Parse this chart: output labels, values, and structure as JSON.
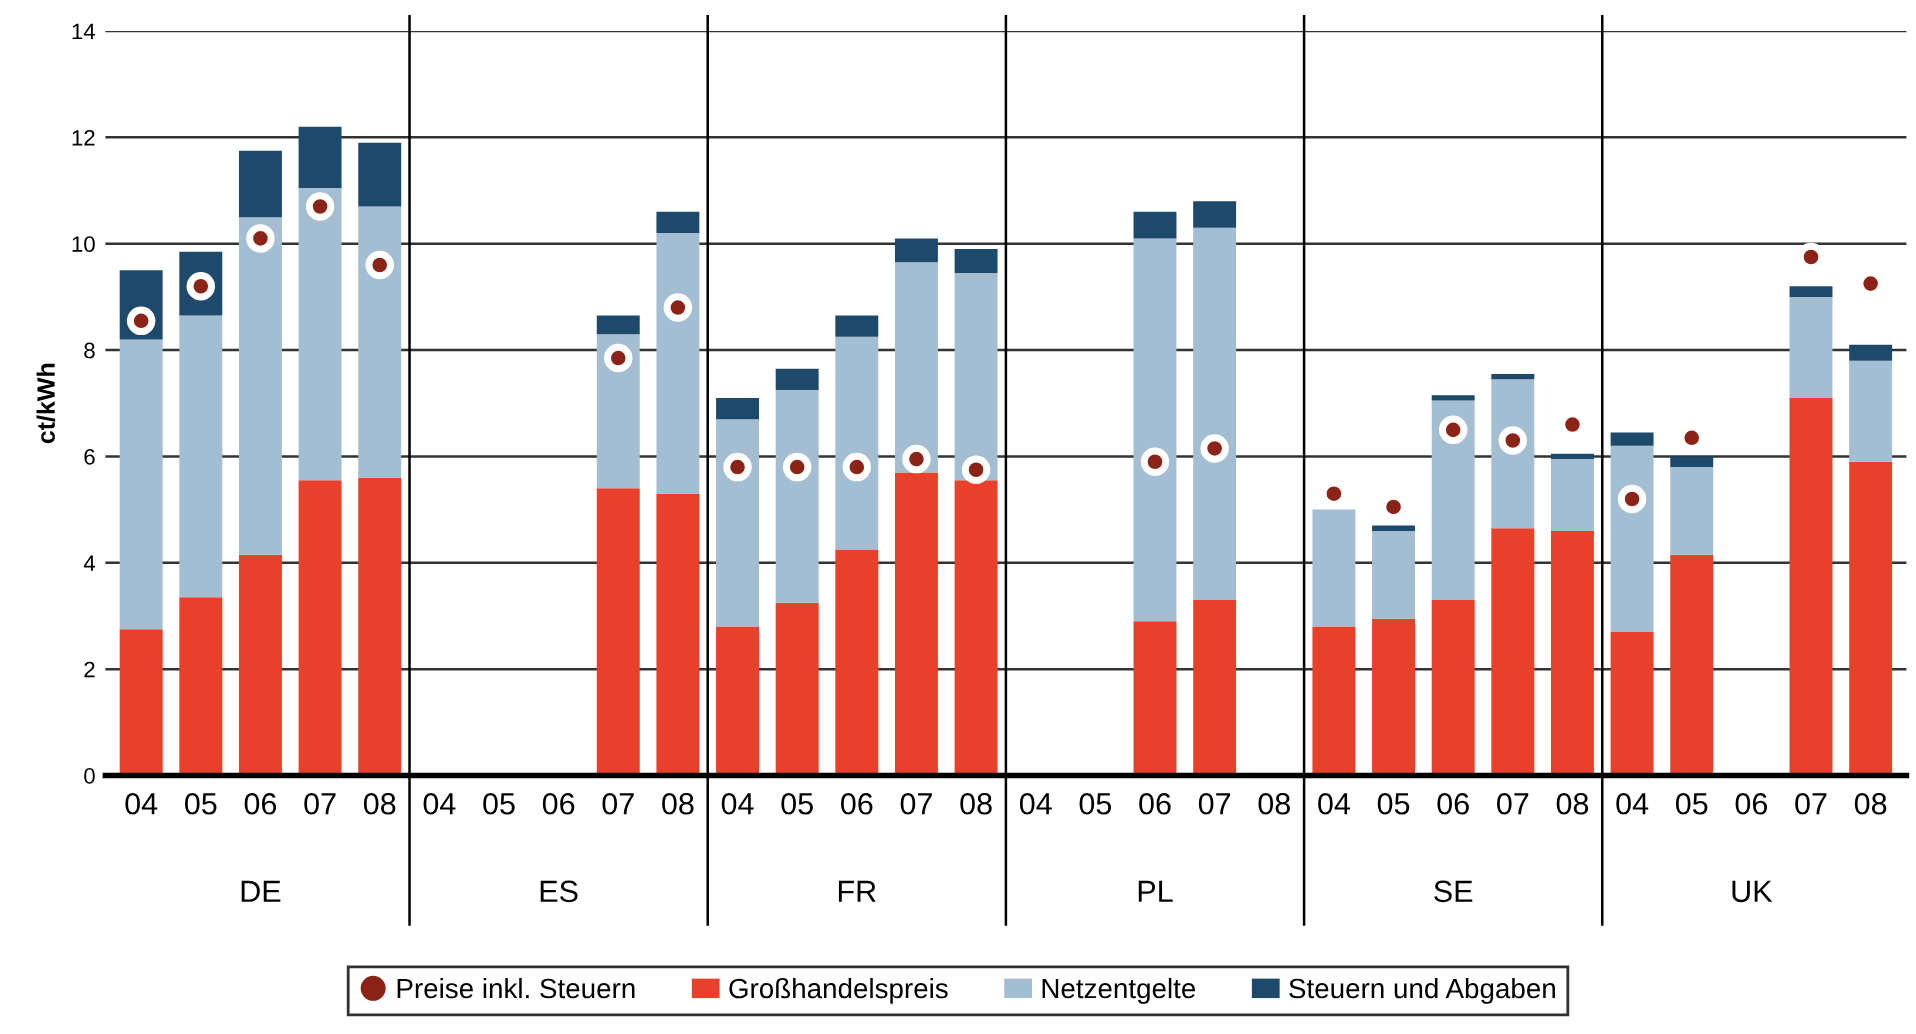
{
  "chart_data": {
    "type": "bar",
    "stacked": true,
    "ylabel": "ct/kWh",
    "categories": [
      "04",
      "05",
      "06",
      "07",
      "08",
      "04",
      "05",
      "06",
      "07",
      "08",
      "04",
      "05",
      "06",
      "07",
      "08",
      "04",
      "05",
      "06",
      "07",
      "08",
      "04",
      "05",
      "06",
      "07",
      "08",
      "04",
      "05",
      "06",
      "07",
      "08"
    ],
    "annotations": [
      "DE",
      "ES",
      "FR",
      "PL",
      "SE",
      "UK"
    ],
    "series": [
      {
        "name": "Preise inkl. Steuern",
        "type": "scatter",
        "color": "#8b2416",
        "values": [
          8.55,
          9.2,
          10.1,
          10.7,
          9.6,
          null,
          null,
          null,
          7.85,
          8.8,
          5.8,
          5.8,
          5.8,
          5.95,
          5.75,
          null,
          null,
          5.9,
          6.15,
          null,
          5.3,
          5.05,
          6.5,
          6.3,
          6.6,
          5.2,
          6.35,
          null,
          9.75,
          9.25
        ]
      },
      {
        "name": "Großhandelspreis",
        "color": "#e8402a",
        "values": [
          2.75,
          3.35,
          4.15,
          5.55,
          5.6,
          null,
          null,
          null,
          5.4,
          5.3,
          2.8,
          3.25,
          4.25,
          5.7,
          5.55,
          null,
          null,
          2.9,
          3.3,
          null,
          2.8,
          2.95,
          3.3,
          4.65,
          4.6,
          2.7,
          4.15,
          null,
          7.1,
          5.9
        ]
      },
      {
        "name": "Netzentgelte",
        "color": "#a3bdd3",
        "values": [
          5.45,
          5.3,
          6.35,
          5.5,
          5.1,
          null,
          null,
          null,
          2.9,
          4.9,
          3.9,
          4.0,
          4.0,
          3.95,
          3.9,
          null,
          null,
          7.2,
          7.0,
          null,
          2.2,
          1.65,
          3.75,
          2.8,
          1.35,
          3.5,
          1.65,
          null,
          1.9,
          1.9
        ]
      },
      {
        "name": "Steuern und Abgaben",
        "color": "#1d4a6b",
        "values": [
          1.3,
          1.2,
          1.25,
          1.15,
          1.2,
          null,
          null,
          null,
          0.35,
          0.4,
          0.4,
          0.4,
          0.4,
          0.45,
          0.45,
          null,
          null,
          0.5,
          0.5,
          null,
          null,
          0.1,
          0.1,
          0.1,
          0.1,
          0.25,
          0.2,
          null,
          0.2,
          0.3
        ]
      }
    ],
    "ylim": [
      0,
      14
    ],
    "yticks": [
      0,
      2,
      4,
      6,
      8,
      10,
      12,
      14
    ],
    "grid": "y",
    "legend": "bottom",
    "marker": "circle"
  }
}
